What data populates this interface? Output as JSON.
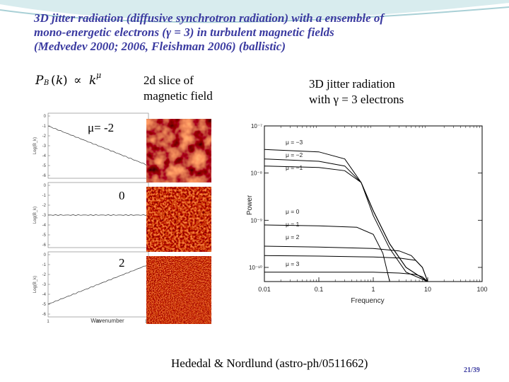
{
  "title": {
    "line1": "3D jitter radiation (diffusive synchrotron radiation) with a ensemble of",
    "line2": "mono-energetic electrons (γ = 3) in turbulent magnetic fields",
    "line3": "(Medvedev 2000; 2006, Fleishman 2006)   (ballistic)"
  },
  "formula": "P_B(k) ∝ k^μ",
  "slice_label": {
    "line1": "2d slice of",
    "line2": "magnetic field"
  },
  "jitter_label": {
    "line1": "3D jitter radiation",
    "line2": "with γ = 3 electrons"
  },
  "mu_labels": {
    "first": "μ=  -2",
    "second": "0",
    "third": "2"
  },
  "slope_panels": {
    "ylabel": "Log(B_k)",
    "xlabel": "Wavenumber",
    "x_ticks": [
      "1",
      "10",
      "100"
    ],
    "panel1_yticks": [
      "0",
      "-1",
      "-2",
      "-3",
      "-4",
      "-5",
      "-6"
    ],
    "panel2_yticks": [
      "0",
      "-1",
      "-2",
      "-3",
      "-4",
      "-5",
      "-6"
    ],
    "panel3_yticks": [
      "0",
      "-1",
      "-2",
      "-3",
      "-4",
      "-5",
      "-6"
    ],
    "panel1_slope": -2,
    "panel2_slope": 0,
    "panel3_slope": 2
  },
  "chart_data": {
    "type": "line",
    "xlabel": "Frequency",
    "ylabel": "Power",
    "x_scale": "log",
    "y_scale": "log",
    "xlim": [
      0.01,
      100
    ],
    "x_ticks": [
      "0.01",
      "0.1",
      "1",
      "10",
      "100"
    ],
    "y_ticks": [
      "10⁻¹⁰",
      "10⁻⁹",
      "10⁻⁸",
      "10⁻⁷"
    ],
    "legend_top": [
      "μ = −3",
      "μ = −2",
      "μ = −1"
    ],
    "legend_bottom": [
      "μ = 0",
      "μ = 1",
      "μ = 2",
      "μ = 3"
    ],
    "series": [
      {
        "name": "μ = −3",
        "x": [
          0.01,
          0.1,
          0.3,
          0.6,
          1,
          2,
          4,
          10
        ],
        "y": [
          -7.5,
          -7.55,
          -7.7,
          -8.2,
          -8.9,
          -9.6,
          -10.1,
          -10.3
        ]
      },
      {
        "name": "μ = −2",
        "x": [
          0.01,
          0.1,
          0.3,
          0.6,
          1,
          2,
          4,
          10
        ],
        "y": [
          -7.7,
          -7.75,
          -7.85,
          -8.2,
          -8.8,
          -9.5,
          -10.0,
          -10.3
        ]
      },
      {
        "name": "μ = −1",
        "x": [
          0.01,
          0.1,
          0.3,
          0.6,
          1,
          2,
          4,
          10
        ],
        "y": [
          -7.85,
          -7.88,
          -7.95,
          -8.2,
          -8.8,
          -9.5,
          -10.0,
          -10.3
        ]
      },
      {
        "name": "μ = 0",
        "x": [
          0.01,
          0.1,
          0.5,
          1,
          1.5,
          2,
          10
        ],
        "y": [
          -9.1,
          -9.12,
          -9.15,
          -9.3,
          -9.7,
          -10.3,
          -10.3
        ]
      },
      {
        "name": "μ = 1",
        "x": [
          0.01,
          0.1,
          1,
          3,
          5,
          8,
          10
        ],
        "y": [
          -9.55,
          -9.57,
          -9.6,
          -9.65,
          -9.75,
          -10.0,
          -10.3
        ]
      },
      {
        "name": "μ = 2",
        "x": [
          0.01,
          0.1,
          1,
          3,
          6,
          8,
          10
        ],
        "y": [
          -9.75,
          -9.76,
          -9.78,
          -9.8,
          -9.85,
          -10.0,
          -10.3
        ]
      },
      {
        "name": "μ = 3",
        "x": [
          0.01,
          0.1,
          1,
          3,
          6,
          8,
          10
        ],
        "y": [
          -10.1,
          -10.1,
          -10.1,
          -10.12,
          -10.15,
          -10.2,
          -10.3
        ]
      }
    ]
  },
  "citation": "Hededal & Nordlund (astro-ph/0511662)",
  "page_number": "21/39",
  "colors": {
    "title": "#3a3aa0",
    "swoosh": "#b8d8dc"
  }
}
